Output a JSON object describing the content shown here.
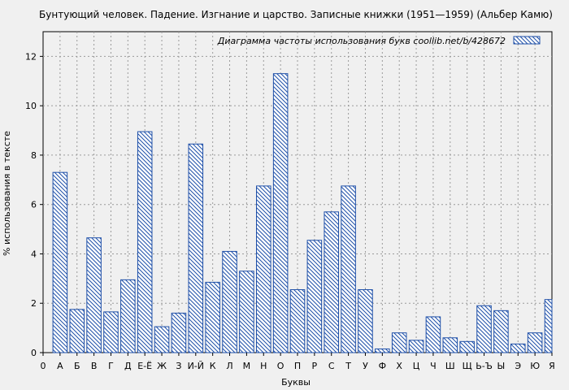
{
  "chart_data": {
    "type": "bar",
    "title": "Бунтующий человек. Падение. Изгнание и царство. Записные книжки (1951—1959) (Альбер Камю)",
    "xlabel": "Буквы",
    "ylabel": "% использования в тексте",
    "ylim": [
      0,
      13
    ],
    "yticks": [
      0,
      2,
      4,
      6,
      8,
      10,
      12
    ],
    "grid": true,
    "legend_position": "top-right",
    "legend_label": "Диаграмма частоты использования букв  coollib.net/b/428672",
    "bar_color": "#1e4fa8",
    "x_axis_labels": [
      "0",
      "А",
      "Б",
      "В",
      "Г",
      "Д",
      "Е-Ё",
      "Ж",
      "З",
      "И-Й",
      "К",
      "Л",
      "М",
      "Н",
      "О",
      "П",
      "Р",
      "С",
      "Т",
      "У",
      "Ф",
      "Х",
      "Ц",
      "Ч",
      "Ш",
      "Щ",
      "Ь-Ъ",
      "Ы",
      "Э",
      "Ю",
      "Я"
    ],
    "categories": [
      "А",
      "Б",
      "В",
      "Г",
      "Д",
      "Е-Ё",
      "Ж",
      "З",
      "И-Й",
      "К",
      "Л",
      "М",
      "Н",
      "О",
      "П",
      "Р",
      "С",
      "Т",
      "У",
      "Ф",
      "Х",
      "Ц",
      "Ч",
      "Ш",
      "Щ",
      "Ь-Ъ",
      "Ы",
      "Э",
      "Ю",
      "Я"
    ],
    "values": [
      7.3,
      1.75,
      4.65,
      1.65,
      2.95,
      8.95,
      1.05,
      1.6,
      8.45,
      2.85,
      4.1,
      3.3,
      6.75,
      11.3,
      2.55,
      4.55,
      5.7,
      6.75,
      2.55,
      0.15,
      0.8,
      0.5,
      1.45,
      0.6,
      0.45,
      1.9,
      1.7,
      0.35,
      0.8,
      2.15
    ]
  }
}
